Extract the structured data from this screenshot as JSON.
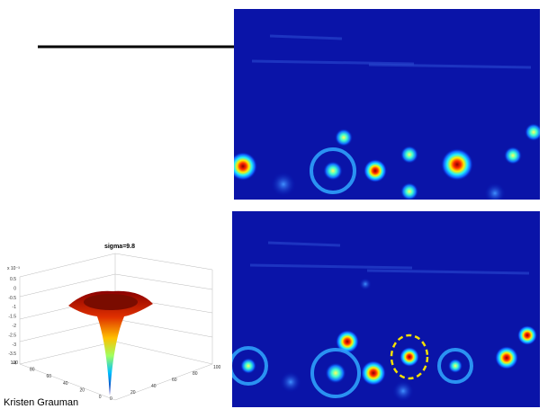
{
  "slide": {
    "plot": {
      "title": "sigma=9.8",
      "exponent": "x 10⁻³",
      "z_ticks": [
        "0.5",
        "0",
        "-0.5",
        "-1",
        "-1.5",
        "-2",
        "-2.5",
        "-3",
        "-3.5",
        "-4"
      ],
      "x_ticks": [
        "100",
        "80",
        "60",
        "40",
        "20",
        "0"
      ],
      "y_ticks": [
        "0",
        "20",
        "40",
        "60",
        "80",
        "100"
      ]
    },
    "credit": "Kristen Grauman"
  }
}
